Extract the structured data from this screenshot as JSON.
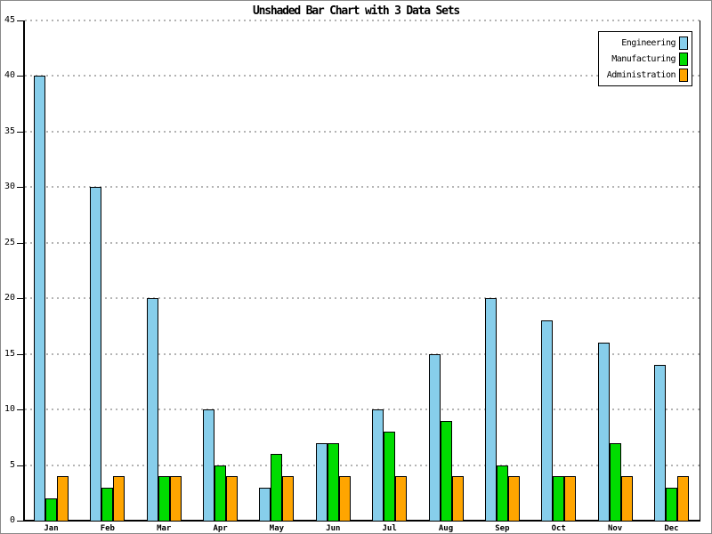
{
  "chart_data": {
    "type": "bar",
    "title": "Unshaded Bar Chart with 3 Data Sets",
    "categories": [
      "Jan",
      "Feb",
      "Mar",
      "Apr",
      "May",
      "Jun",
      "Jul",
      "Aug",
      "Sep",
      "Oct",
      "Nov",
      "Dec"
    ],
    "series": [
      {
        "name": "Engineering",
        "color": "#87CEEB",
        "values": [
          40,
          30,
          20,
          10,
          3,
          7,
          10,
          15,
          20,
          18,
          16,
          14
        ]
      },
      {
        "name": "Manufacturing",
        "color": "#00DC00",
        "values": [
          2,
          3,
          4,
          5,
          6,
          7,
          8,
          9,
          5,
          4,
          7,
          3
        ]
      },
      {
        "name": "Administration",
        "color": "#FFA500",
        "values": [
          4,
          4,
          4,
          4,
          4,
          4,
          4,
          4,
          4,
          4,
          4,
          4
        ]
      }
    ],
    "xlabel": "",
    "ylabel": "",
    "ylim": [
      0,
      45
    ],
    "yticks": [
      0,
      5,
      10,
      15,
      20,
      25,
      30,
      35,
      40,
      45
    ],
    "grid": "horizontal-dotted",
    "legend_position": "top-right",
    "colors": {
      "bar_border": "#000000",
      "gridline": "#b4b4b4",
      "axis": "#000000",
      "background": "#ffffff"
    }
  }
}
